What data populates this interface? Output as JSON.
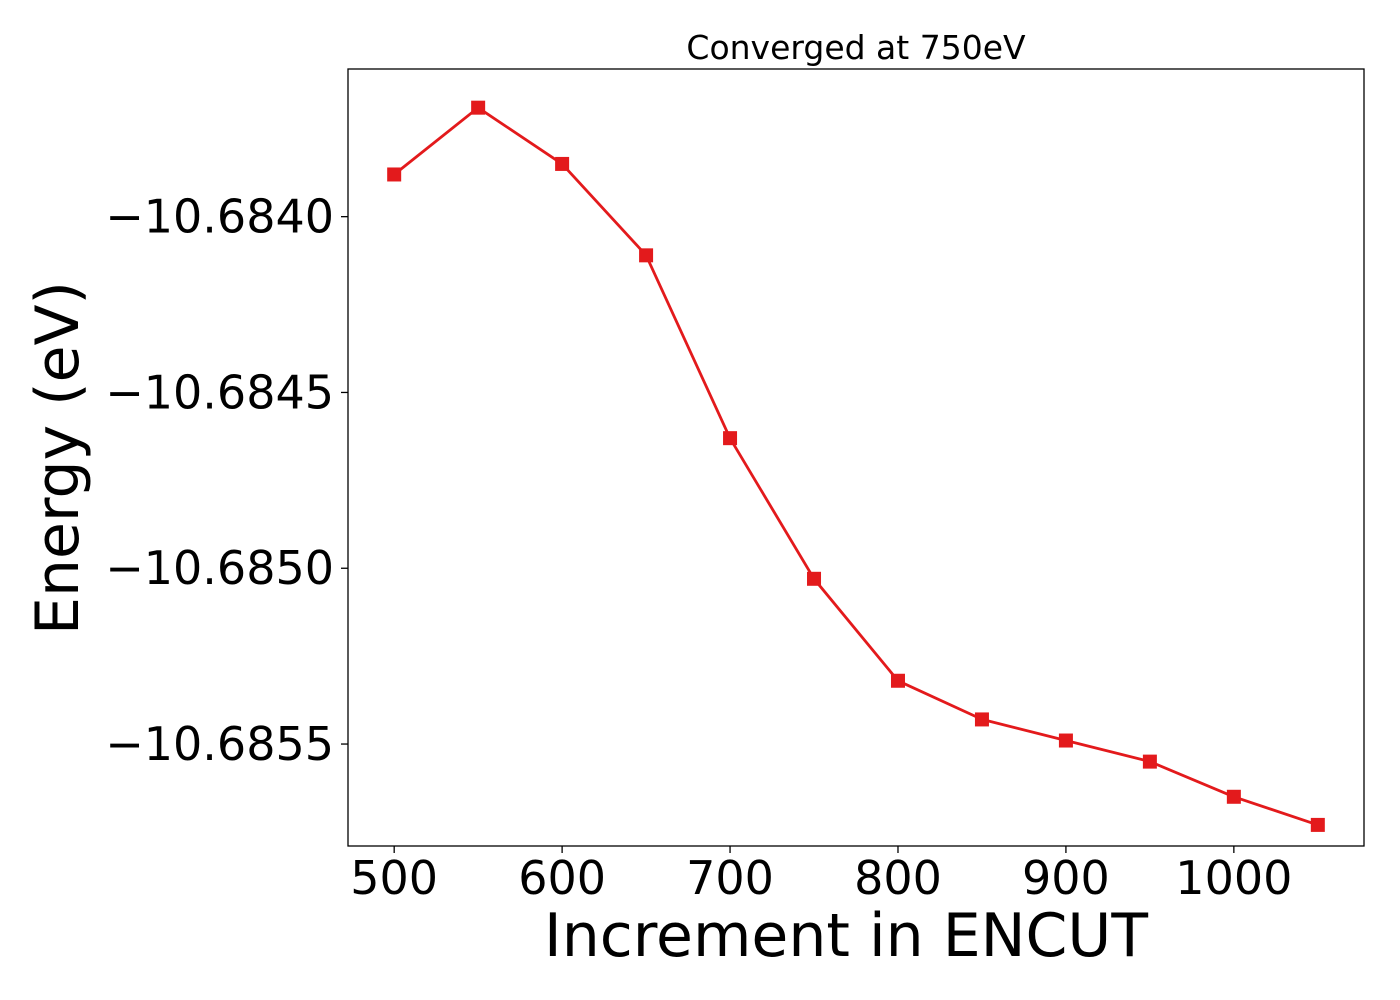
{
  "chart_data": {
    "type": "line",
    "title": "Converged at 750eV",
    "xlabel": "Increment in ENCUT",
    "ylabel": "Energy (eV)",
    "x": [
      500,
      550,
      600,
      650,
      700,
      750,
      800,
      850,
      900,
      950,
      1000,
      1050
    ],
    "series": [
      {
        "values": [
          -10.68388,
          -10.68369,
          -10.68385,
          -10.68411,
          -10.68463,
          -10.68503,
          -10.68532,
          -10.68543,
          -10.68549,
          -10.68555,
          -10.68565,
          -10.68573
        ],
        "color": "#e31a1c",
        "marker": "square"
      }
    ],
    "xlim": [
      472.5,
      1077.5
    ],
    "ylim": [
      -10.68579,
      -10.68358
    ],
    "xticks": [
      500,
      600,
      700,
      800,
      900,
      1000
    ],
    "xtick_labels": [
      "500",
      "600",
      "700",
      "800",
      "900",
      "1000"
    ],
    "yticks": [
      -10.684,
      -10.6845,
      -10.685,
      -10.6855
    ],
    "ytick_labels": [
      "−10.6840",
      "−10.6845",
      "−10.6850",
      "−10.6855"
    ],
    "grid": false,
    "legend": "none"
  }
}
